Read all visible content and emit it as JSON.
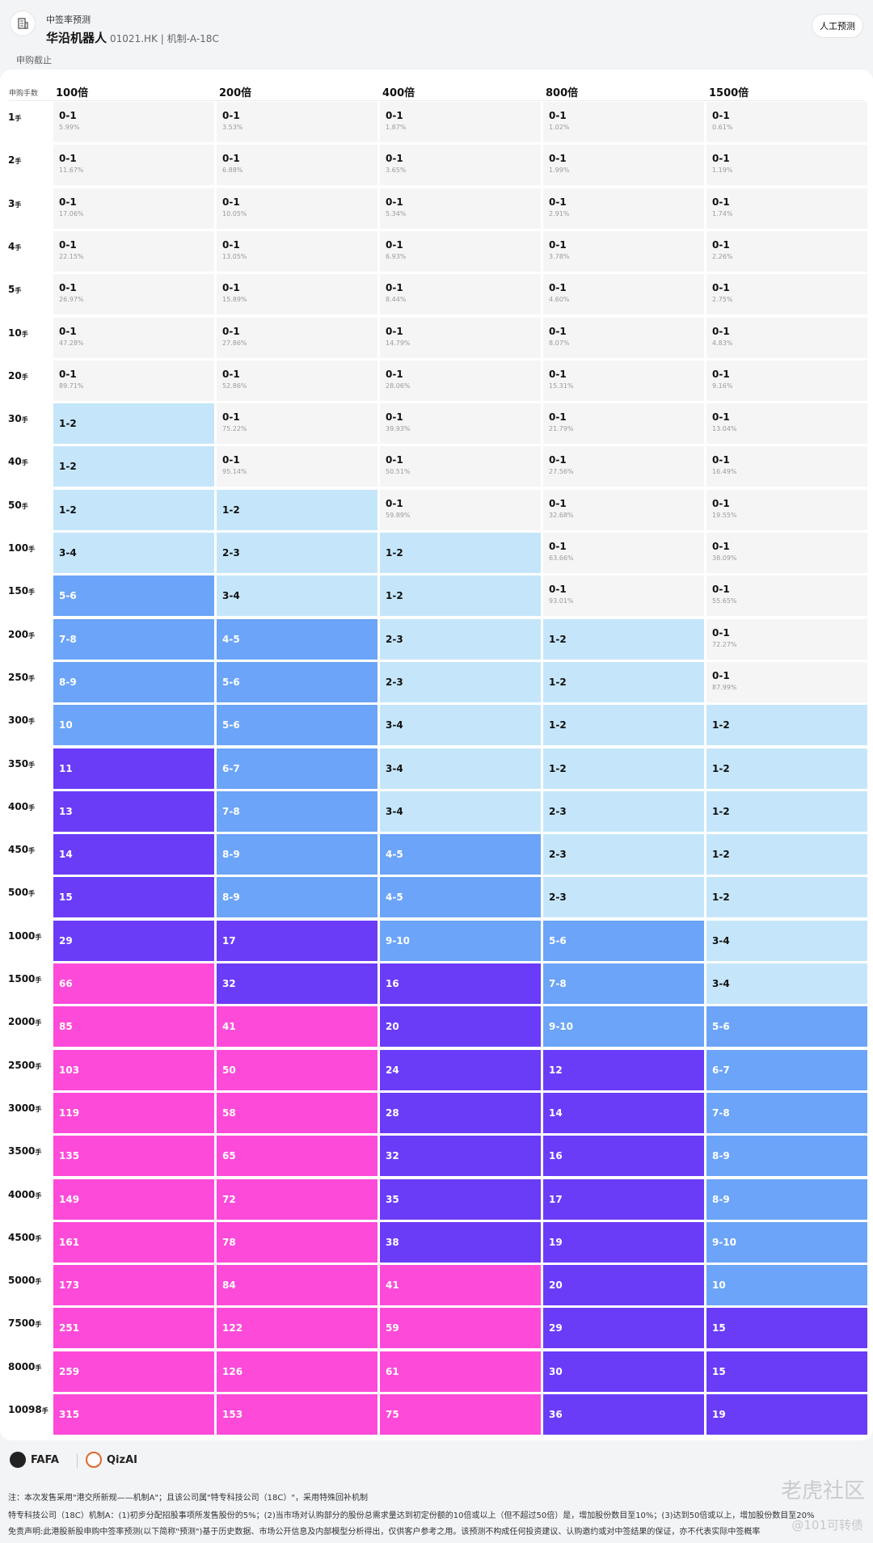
{
  "header": {
    "subtitle": "中签率预测",
    "stock_name": "华沿机器人",
    "stock_code": "01021.HK | 机制-A-18C",
    "manual_button": "人工预测",
    "status": "申购截止"
  },
  "table": {
    "row_label_header": "申购手数",
    "unit": "手",
    "columns": [
      "100倍",
      "200倍",
      "400倍",
      "800倍",
      "1500倍"
    ],
    "level_colors": [
      "#f5f5f5",
      "#c5e6fa",
      "#6ba4f8",
      "#6a3cf8",
      "#fd4ad9"
    ],
    "rows": [
      {
        "label": "1",
        "cells": [
          {
            "v": "0-1",
            "p": "5.99%",
            "l": 0
          },
          {
            "v": "0-1",
            "p": "3.53%",
            "l": 0
          },
          {
            "v": "0-1",
            "p": "1.87%",
            "l": 0
          },
          {
            "v": "0-1",
            "p": "1.02%",
            "l": 0
          },
          {
            "v": "0-1",
            "p": "0.61%",
            "l": 0
          }
        ]
      },
      {
        "label": "2",
        "cells": [
          {
            "v": "0-1",
            "p": "11.67%",
            "l": 0
          },
          {
            "v": "0-1",
            "p": "6.88%",
            "l": 0
          },
          {
            "v": "0-1",
            "p": "3.65%",
            "l": 0
          },
          {
            "v": "0-1",
            "p": "1.99%",
            "l": 0
          },
          {
            "v": "0-1",
            "p": "1.19%",
            "l": 0
          }
        ]
      },
      {
        "label": "3",
        "cells": [
          {
            "v": "0-1",
            "p": "17.06%",
            "l": 0
          },
          {
            "v": "0-1",
            "p": "10.05%",
            "l": 0
          },
          {
            "v": "0-1",
            "p": "5.34%",
            "l": 0
          },
          {
            "v": "0-1",
            "p": "2.91%",
            "l": 0
          },
          {
            "v": "0-1",
            "p": "1.74%",
            "l": 0
          }
        ]
      },
      {
        "label": "4",
        "cells": [
          {
            "v": "0-1",
            "p": "22.15%",
            "l": 0
          },
          {
            "v": "0-1",
            "p": "13.05%",
            "l": 0
          },
          {
            "v": "0-1",
            "p": "6.93%",
            "l": 0
          },
          {
            "v": "0-1",
            "p": "3.78%",
            "l": 0
          },
          {
            "v": "0-1",
            "p": "2.26%",
            "l": 0
          }
        ]
      },
      {
        "label": "5",
        "cells": [
          {
            "v": "0-1",
            "p": "26.97%",
            "l": 0
          },
          {
            "v": "0-1",
            "p": "15.89%",
            "l": 0
          },
          {
            "v": "0-1",
            "p": "8.44%",
            "l": 0
          },
          {
            "v": "0-1",
            "p": "4.60%",
            "l": 0
          },
          {
            "v": "0-1",
            "p": "2.75%",
            "l": 0
          }
        ]
      },
      {
        "label": "10",
        "cells": [
          {
            "v": "0-1",
            "p": "47.28%",
            "l": 0
          },
          {
            "v": "0-1",
            "p": "27.86%",
            "l": 0
          },
          {
            "v": "0-1",
            "p": "14.79%",
            "l": 0
          },
          {
            "v": "0-1",
            "p": "8.07%",
            "l": 0
          },
          {
            "v": "0-1",
            "p": "4.83%",
            "l": 0
          }
        ]
      },
      {
        "label": "20",
        "cells": [
          {
            "v": "0-1",
            "p": "89.71%",
            "l": 0
          },
          {
            "v": "0-1",
            "p": "52.86%",
            "l": 0
          },
          {
            "v": "0-1",
            "p": "28.06%",
            "l": 0
          },
          {
            "v": "0-1",
            "p": "15.31%",
            "l": 0
          },
          {
            "v": "0-1",
            "p": "9.16%",
            "l": 0
          }
        ]
      },
      {
        "label": "30",
        "cells": [
          {
            "v": "1-2",
            "l": 1
          },
          {
            "v": "0-1",
            "p": "75.22%",
            "l": 0
          },
          {
            "v": "0-1",
            "p": "39.93%",
            "l": 0
          },
          {
            "v": "0-1",
            "p": "21.79%",
            "l": 0
          },
          {
            "v": "0-1",
            "p": "13.04%",
            "l": 0
          }
        ]
      },
      {
        "label": "40",
        "cells": [
          {
            "v": "1-2",
            "l": 1
          },
          {
            "v": "0-1",
            "p": "95.14%",
            "l": 0
          },
          {
            "v": "0-1",
            "p": "50.51%",
            "l": 0
          },
          {
            "v": "0-1",
            "p": "27.56%",
            "l": 0
          },
          {
            "v": "0-1",
            "p": "16.49%",
            "l": 0
          }
        ]
      },
      {
        "label": "50",
        "cells": [
          {
            "v": "1-2",
            "l": 1
          },
          {
            "v": "1-2",
            "l": 1
          },
          {
            "v": "0-1",
            "p": "59.89%",
            "l": 0
          },
          {
            "v": "0-1",
            "p": "32.68%",
            "l": 0
          },
          {
            "v": "0-1",
            "p": "19.55%",
            "l": 0
          }
        ]
      },
      {
        "label": "100",
        "cells": [
          {
            "v": "3-4",
            "l": 1
          },
          {
            "v": "2-3",
            "l": 1
          },
          {
            "v": "1-2",
            "l": 1
          },
          {
            "v": "0-1",
            "p": "63.66%",
            "l": 0
          },
          {
            "v": "0-1",
            "p": "38.09%",
            "l": 0
          }
        ]
      },
      {
        "label": "150",
        "cells": [
          {
            "v": "5-6",
            "l": 2
          },
          {
            "v": "3-4",
            "l": 1
          },
          {
            "v": "1-2",
            "l": 1
          },
          {
            "v": "0-1",
            "p": "93.01%",
            "l": 0
          },
          {
            "v": "0-1",
            "p": "55.65%",
            "l": 0
          }
        ]
      },
      {
        "label": "200",
        "cells": [
          {
            "v": "7-8",
            "l": 2
          },
          {
            "v": "4-5",
            "l": 2
          },
          {
            "v": "2-3",
            "l": 1
          },
          {
            "v": "1-2",
            "l": 1
          },
          {
            "v": "0-1",
            "p": "72.27%",
            "l": 0
          }
        ]
      },
      {
        "label": "250",
        "cells": [
          {
            "v": "8-9",
            "l": 2
          },
          {
            "v": "5-6",
            "l": 2
          },
          {
            "v": "2-3",
            "l": 1
          },
          {
            "v": "1-2",
            "l": 1
          },
          {
            "v": "0-1",
            "p": "87.99%",
            "l": 0
          }
        ]
      },
      {
        "label": "300",
        "cells": [
          {
            "v": "10",
            "l": 2
          },
          {
            "v": "5-6",
            "l": 2
          },
          {
            "v": "3-4",
            "l": 1
          },
          {
            "v": "1-2",
            "l": 1
          },
          {
            "v": "1-2",
            "l": 1
          }
        ]
      },
      {
        "label": "350",
        "cells": [
          {
            "v": "11",
            "l": 3
          },
          {
            "v": "6-7",
            "l": 2
          },
          {
            "v": "3-4",
            "l": 1
          },
          {
            "v": "1-2",
            "l": 1
          },
          {
            "v": "1-2",
            "l": 1
          }
        ]
      },
      {
        "label": "400",
        "cells": [
          {
            "v": "13",
            "l": 3
          },
          {
            "v": "7-8",
            "l": 2
          },
          {
            "v": "3-4",
            "l": 1
          },
          {
            "v": "2-3",
            "l": 1
          },
          {
            "v": "1-2",
            "l": 1
          }
        ]
      },
      {
        "label": "450",
        "cells": [
          {
            "v": "14",
            "l": 3
          },
          {
            "v": "8-9",
            "l": 2
          },
          {
            "v": "4-5",
            "l": 2
          },
          {
            "v": "2-3",
            "l": 1
          },
          {
            "v": "1-2",
            "l": 1
          }
        ]
      },
      {
        "label": "500",
        "cells": [
          {
            "v": "15",
            "l": 3
          },
          {
            "v": "8-9",
            "l": 2
          },
          {
            "v": "4-5",
            "l": 2
          },
          {
            "v": "2-3",
            "l": 1
          },
          {
            "v": "1-2",
            "l": 1
          }
        ]
      },
      {
        "label": "1000",
        "cells": [
          {
            "v": "29",
            "l": 3
          },
          {
            "v": "17",
            "l": 3
          },
          {
            "v": "9-10",
            "l": 2
          },
          {
            "v": "5-6",
            "l": 2
          },
          {
            "v": "3-4",
            "l": 1
          }
        ]
      },
      {
        "label": "1500",
        "cells": [
          {
            "v": "66",
            "l": 4
          },
          {
            "v": "32",
            "l": 3
          },
          {
            "v": "16",
            "l": 3
          },
          {
            "v": "7-8",
            "l": 2
          },
          {
            "v": "3-4",
            "l": 1
          }
        ]
      },
      {
        "label": "2000",
        "cells": [
          {
            "v": "85",
            "l": 4
          },
          {
            "v": "41",
            "l": 4
          },
          {
            "v": "20",
            "l": 3
          },
          {
            "v": "9-10",
            "l": 2
          },
          {
            "v": "5-6",
            "l": 2
          }
        ]
      },
      {
        "label": "2500",
        "cells": [
          {
            "v": "103",
            "l": 4
          },
          {
            "v": "50",
            "l": 4
          },
          {
            "v": "24",
            "l": 3
          },
          {
            "v": "12",
            "l": 3
          },
          {
            "v": "6-7",
            "l": 2
          }
        ]
      },
      {
        "label": "3000",
        "cells": [
          {
            "v": "119",
            "l": 4
          },
          {
            "v": "58",
            "l": 4
          },
          {
            "v": "28",
            "l": 3
          },
          {
            "v": "14",
            "l": 3
          },
          {
            "v": "7-8",
            "l": 2
          }
        ]
      },
      {
        "label": "3500",
        "cells": [
          {
            "v": "135",
            "l": 4
          },
          {
            "v": "65",
            "l": 4
          },
          {
            "v": "32",
            "l": 3
          },
          {
            "v": "16",
            "l": 3
          },
          {
            "v": "8-9",
            "l": 2
          }
        ]
      },
      {
        "label": "4000",
        "cells": [
          {
            "v": "149",
            "l": 4
          },
          {
            "v": "72",
            "l": 4
          },
          {
            "v": "35",
            "l": 3
          },
          {
            "v": "17",
            "l": 3
          },
          {
            "v": "8-9",
            "l": 2
          }
        ]
      },
      {
        "label": "4500",
        "cells": [
          {
            "v": "161",
            "l": 4
          },
          {
            "v": "78",
            "l": 4
          },
          {
            "v": "38",
            "l": 3
          },
          {
            "v": "19",
            "l": 3
          },
          {
            "v": "9-10",
            "l": 2
          }
        ]
      },
      {
        "label": "5000",
        "cells": [
          {
            "v": "173",
            "l": 4
          },
          {
            "v": "84",
            "l": 4
          },
          {
            "v": "41",
            "l": 4
          },
          {
            "v": "20",
            "l": 3
          },
          {
            "v": "10",
            "l": 2
          }
        ]
      },
      {
        "label": "7500",
        "cells": [
          {
            "v": "251",
            "l": 4
          },
          {
            "v": "122",
            "l": 4
          },
          {
            "v": "59",
            "l": 4
          },
          {
            "v": "29",
            "l": 3
          },
          {
            "v": "15",
            "l": 3
          }
        ]
      },
      {
        "label": "8000",
        "cells": [
          {
            "v": "259",
            "l": 4
          },
          {
            "v": "126",
            "l": 4
          },
          {
            "v": "61",
            "l": 4
          },
          {
            "v": "30",
            "l": 3
          },
          {
            "v": "15",
            "l": 3
          }
        ]
      },
      {
        "label": "10098",
        "cells": [
          {
            "v": "315",
            "l": 4
          },
          {
            "v": "153",
            "l": 4
          },
          {
            "v": "75",
            "l": 4
          },
          {
            "v": "36",
            "l": 3
          },
          {
            "v": "19",
            "l": 3
          }
        ]
      }
    ]
  },
  "footer": {
    "brand1": "FAFA",
    "brand2": "QizAI",
    "note1": "注：本次发售采用\"港交所新规——机制A\"；且该公司属\"特专科技公司（18C）\"，采用特殊回补机制",
    "note2": "特专科技公司（18C）机制A：(1)初步分配招股事项所发售股份的5%；(2)当市场对认购部分的股份总需求量达到初定份额的10倍或以上（但不超过50倍）是，增加股份数目至10%；(3)达到50倍或以上，增加股份数目至20%",
    "note3": "免责声明:此港股新股申购中签率预测(以下简称\"预测\")基于历史数据、市场公开信息及内部模型分析得出，仅供客户参考之用。该预测不构成任何投资建议、认购邀约或对中签结果的保证，亦不代表实际中签概率",
    "watermark": "老虎社区",
    "watermark2": "@101可转债"
  }
}
